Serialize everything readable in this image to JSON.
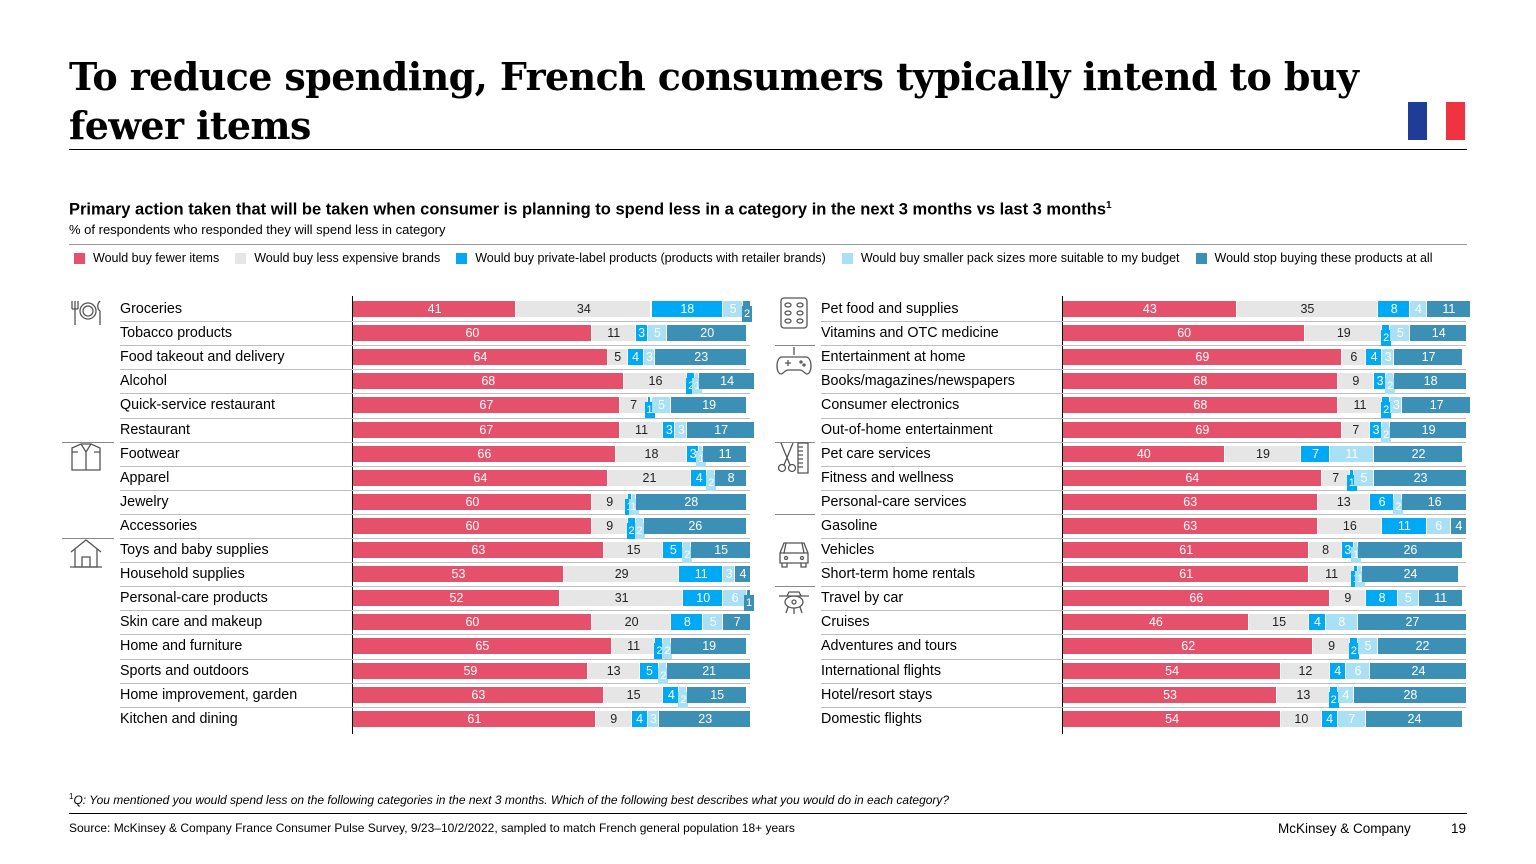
{
  "header": {
    "title": "To reduce spending, French consumers typically intend to buy fewer items",
    "subtitle": "Primary action taken that will be taken when consumer is planning to spend less in a category in the next 3 months vs last 3 months",
    "subtitle_footnote_marker": "1",
    "units": "% of respondents who responded they will spend less in category",
    "flag_colors": [
      "#1f3c96",
      "#ffffff",
      "#ef3340"
    ]
  },
  "footer": {
    "footnote_marker": "1",
    "footnote": "Q: You mentioned you would spend less on the following categories in the next 3 months. Which of the following best describes what you would do in each category?",
    "source": "Source: McKinsey & Company France Consumer Pulse Survey, 9/23–10/2/2022, sampled to match French general population 18+ years",
    "brand": "McKinsey & Company",
    "page_number": "19"
  },
  "icons": [
    {
      "panel": 0,
      "row": 0,
      "name": "cutlery-plate-icon"
    },
    {
      "panel": 0,
      "row": 6,
      "name": "shirt-box-icon"
    },
    {
      "panel": 0,
      "row": 10,
      "name": "house-icon"
    },
    {
      "panel": 1,
      "row": 0,
      "name": "pill-pack-icon"
    },
    {
      "panel": 1,
      "row": 2,
      "name": "game-controller-icon"
    },
    {
      "panel": 1,
      "row": 6,
      "name": "scissors-comb-icon"
    },
    {
      "panel": 1,
      "row": 10,
      "name": "car-icon"
    },
    {
      "panel": 1,
      "row": 12,
      "name": "airplane-icon"
    }
  ],
  "chart_data": {
    "type": "bar",
    "orientation": "horizontal",
    "stacked": true,
    "unit": "%",
    "legend": [
      {
        "name": "Would buy fewer items",
        "color": "#e5516a"
      },
      {
        "name": "Would buy less expensive brands",
        "color": "#e6e6e6"
      },
      {
        "name": "Would buy private-label products (products with retailer brands)",
        "color": "#00a9f4"
      },
      {
        "name": "Would buy smaller pack sizes more suitable to my budget",
        "color": "#a9e0f3"
      },
      {
        "name": "Would stop buying these products at all",
        "color": "#3c8fb5"
      }
    ],
    "panels": [
      {
        "categories": [
          "Groceries",
          "Tobacco products",
          "Food takeout and delivery",
          "Alcohol",
          "Quick-service restaurant",
          "Restaurant",
          "Footwear",
          "Apparel",
          "Jewelry",
          "Accessories",
          "Toys and baby supplies",
          "Household supplies",
          "Personal-care products",
          "Skin care and makeup",
          "Home and furniture",
          "Sports and outdoors",
          "Home improvement, garden",
          "Kitchen and dining"
        ],
        "values": [
          [
            41,
            34,
            18,
            5,
            2
          ],
          [
            60,
            11,
            3,
            5,
            20
          ],
          [
            64,
            5,
            4,
            3,
            23
          ],
          [
            68,
            16,
            2,
            1,
            14
          ],
          [
            67,
            7,
            1,
            5,
            19
          ],
          [
            67,
            11,
            3,
            3,
            17
          ],
          [
            66,
            18,
            3,
            1,
            11
          ],
          [
            64,
            21,
            4,
            2,
            8
          ],
          [
            60,
            9,
            1,
            1,
            28
          ],
          [
            60,
            9,
            2,
            2,
            26
          ],
          [
            63,
            15,
            5,
            2,
            15
          ],
          [
            53,
            29,
            11,
            3,
            4
          ],
          [
            52,
            31,
            10,
            6,
            1
          ],
          [
            60,
            20,
            8,
            5,
            7
          ],
          [
            65,
            11,
            2,
            2,
            19
          ],
          [
            59,
            13,
            5,
            2,
            21
          ],
          [
            63,
            15,
            4,
            2,
            15
          ],
          [
            61,
            9,
            4,
            3,
            23
          ]
        ]
      },
      {
        "categories": [
          "Pet food and supplies",
          "Vitamins and OTC medicine",
          "Entertainment at home",
          "Books/magazines/newspapers",
          "Consumer electronics",
          "Out-of-home entertainment",
          "Pet care services",
          "Fitness and wellness",
          "Personal-care services",
          "Gasoline",
          "Vehicles",
          "Short-term home rentals",
          "Travel by car",
          "Cruises",
          "Adventures and tours",
          "International flights",
          "Hotel/resort stays",
          "Domestic flights"
        ],
        "values": [
          [
            43,
            35,
            8,
            4,
            11
          ],
          [
            60,
            19,
            2,
            5,
            14
          ],
          [
            69,
            6,
            4,
            3,
            17
          ],
          [
            68,
            9,
            3,
            2,
            18
          ],
          [
            68,
            11,
            2,
            3,
            17
          ],
          [
            69,
            7,
            3,
            2,
            19
          ],
          [
            40,
            19,
            7,
            11,
            22
          ],
          [
            64,
            7,
            1,
            5,
            23
          ],
          [
            63,
            13,
            6,
            2,
            16
          ],
          [
            63,
            16,
            11,
            6,
            4
          ],
          [
            61,
            8,
            3,
            1,
            26
          ],
          [
            61,
            11,
            1,
            1,
            24
          ],
          [
            66,
            9,
            8,
            5,
            11
          ],
          [
            46,
            15,
            4,
            8,
            27
          ],
          [
            62,
            9,
            2,
            5,
            22
          ],
          [
            54,
            12,
            4,
            6,
            24
          ],
          [
            53,
            13,
            2,
            4,
            28
          ],
          [
            54,
            10,
            4,
            7,
            24
          ]
        ]
      }
    ]
  }
}
